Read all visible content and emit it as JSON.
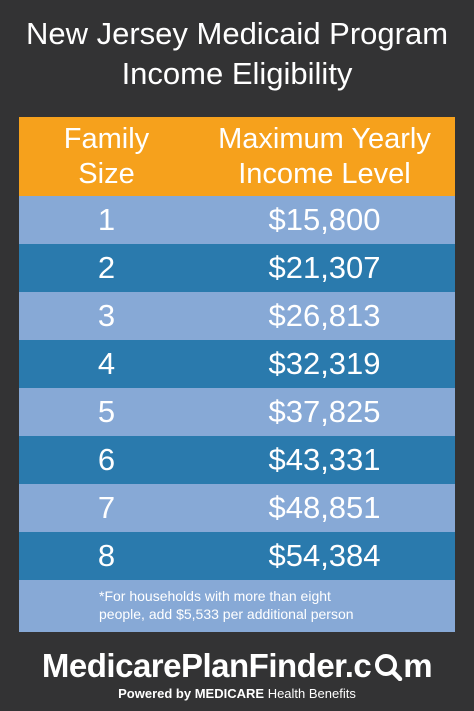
{
  "header": {
    "title_line1": "New Jersey Medicaid Program",
    "title_line2": "Income Eligibility"
  },
  "table": {
    "columns": [
      {
        "line1": "Family",
        "line2": "Size"
      },
      {
        "line1": "Maximum Yearly",
        "line2": "Income Level"
      }
    ],
    "rows": [
      {
        "size": "1",
        "income": "$15,800"
      },
      {
        "size": "2",
        "income": "$21,307"
      },
      {
        "size": "3",
        "income": "$26,813"
      },
      {
        "size": "4",
        "income": "$32,319"
      },
      {
        "size": "5",
        "income": "$37,825"
      },
      {
        "size": "6",
        "income": "$43,331"
      },
      {
        "size": "7",
        "income": "$48,851"
      },
      {
        "size": "8",
        "income": "$54,384"
      }
    ],
    "footnote_line1": "*For households with more than eight",
    "footnote_line2": "people, add $5,533 per additional person"
  },
  "brand": {
    "name_prefix": "MedicarePlanFinder.c",
    "name_suffix": "m",
    "tagline_prefix": "Powered by",
    "tagline_bold": "MEDICARE",
    "tagline_suffix": "Health Benefits",
    "icon": "magnifier-icon"
  },
  "colors": {
    "background": "#333334",
    "header_row": "#f6a11c",
    "row_light": "#87a9d6",
    "row_dark": "#2a7aad",
    "text": "#ffffff"
  }
}
